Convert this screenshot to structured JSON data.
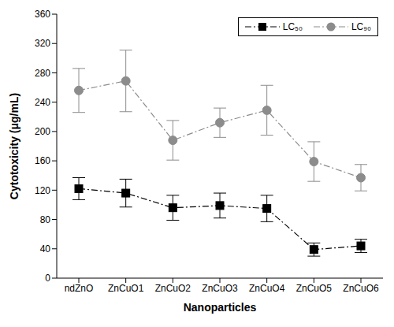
{
  "chart_data": {
    "type": "line",
    "x_label": "Nanoparticles",
    "y_label": "Cytotoxicity (μg/mL)",
    "categories": [
      "ndZnO",
      "ZnCuO1",
      "ZnCuO2",
      "ZnCuO3",
      "ZnCuO4",
      "ZnCuO5",
      "ZnCuO6"
    ],
    "series": [
      {
        "name": "LC₅₀",
        "color": "#000000",
        "marker": "square",
        "line_style": "dashdot",
        "values": [
          122,
          116,
          96,
          99,
          95,
          39,
          44
        ],
        "errors": [
          15,
          19,
          17,
          17,
          18,
          9,
          9
        ]
      },
      {
        "name": "LC₉₀",
        "color": "#8c8c8c",
        "marker": "circle",
        "line_style": "dashdot",
        "values": [
          256,
          269,
          188,
          212,
          229,
          159,
          137
        ],
        "errors": [
          30,
          42,
          27,
          20,
          34,
          27,
          18
        ]
      }
    ],
    "ylim": [
      0,
      360
    ],
    "yticks": [
      0,
      40,
      80,
      120,
      160,
      200,
      240,
      280,
      320,
      360
    ],
    "grid": false,
    "legend": "upper right"
  }
}
